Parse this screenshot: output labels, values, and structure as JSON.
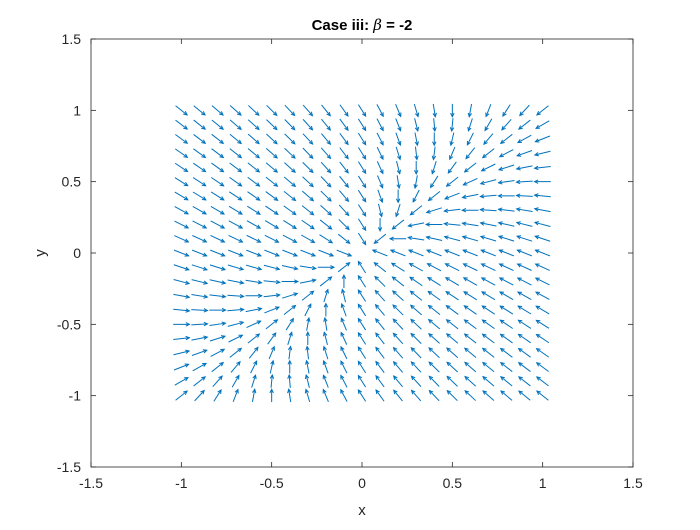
{
  "chart_data": {
    "type": "quiver",
    "title_prefix": "Case iii: ",
    "title_symbol": "β",
    "title_suffix": " = -2",
    "xlabel": "x",
    "ylabel": "y",
    "xlim": [
      -1.5,
      1.5
    ],
    "ylim": [
      -1.5,
      1.5
    ],
    "xticks": [
      "-1.5",
      "-1",
      "-0.5",
      "0",
      "0.5",
      "1",
      "1.5"
    ],
    "yticks": [
      "-1.5",
      "-1",
      "-0.5",
      "0",
      "0.5",
      "1",
      "1.5"
    ],
    "grid": false,
    "box": true,
    "arrow_color": "#0072BD",
    "field": {
      "equation": "dy/dx = (x + beta*y) / (beta*x + y)",
      "beta": -2,
      "x_range": [
        -1,
        1
      ],
      "y_range": [
        -1,
        1
      ],
      "grid_count": 21
    }
  }
}
